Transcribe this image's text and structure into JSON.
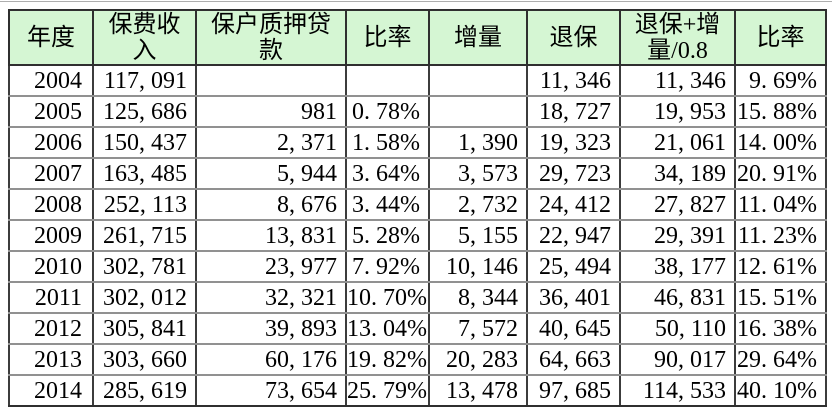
{
  "colors": {
    "header_bg": "#d5f6d3",
    "grid_dark": "#2f2f2f",
    "grid_light": "#919191",
    "text": "#000000",
    "page_bg": "#ffffff"
  },
  "table": {
    "columns": [
      {
        "id": "year",
        "label": "年度"
      },
      {
        "id": "premium-income",
        "label": "保费收\n入"
      },
      {
        "id": "policy-pledge-loan",
        "label": "保户质押贷\n款"
      },
      {
        "id": "ratio",
        "label": "比率"
      },
      {
        "id": "increment",
        "label": "增量"
      },
      {
        "id": "surrender",
        "label": "退保"
      },
      {
        "id": "surrender-plus-increment",
        "label": "退保+增\n量/0.8"
      },
      {
        "id": "ratio-2",
        "label": "比率"
      }
    ],
    "rows": [
      {
        "cells": [
          "2004",
          "117, 091",
          "",
          "",
          "",
          "11, 346",
          "11, 346",
          "9. 69%"
        ]
      },
      {
        "cells": [
          "2005",
          "125, 686",
          "981",
          "0. 78%",
          "",
          "18, 727",
          "19, 953",
          "15. 88%"
        ]
      },
      {
        "cells": [
          "2006",
          "150, 437",
          "2, 371",
          "1. 58%",
          "1, 390",
          "19, 323",
          "21, 061",
          "14. 00%"
        ]
      },
      {
        "cells": [
          "2007",
          "163, 485",
          "5, 944",
          "3. 64%",
          "3, 573",
          "29, 723",
          "34, 189",
          "20. 91%"
        ]
      },
      {
        "cells": [
          "2008",
          "252, 113",
          "8, 676",
          "3. 44%",
          "2, 732",
          "24, 412",
          "27, 827",
          "11. 04%"
        ]
      },
      {
        "cells": [
          "2009",
          "261, 715",
          "13, 831",
          "5. 28%",
          "5, 155",
          "22, 947",
          "29, 391",
          "11. 23%"
        ]
      },
      {
        "cells": [
          "2010",
          "302, 781",
          "23, 977",
          "7. 92%",
          "10, 146",
          "25, 494",
          "38, 177",
          "12. 61%"
        ]
      },
      {
        "cells": [
          "2011",
          "302, 012",
          "32, 321",
          "10. 70%",
          "8, 344",
          "36, 401",
          "46, 831",
          "15. 51%"
        ]
      },
      {
        "cells": [
          "2012",
          "305, 841",
          "39, 893",
          "13. 04%",
          "7, 572",
          "40, 645",
          "50, 110",
          "16. 38%"
        ]
      },
      {
        "cells": [
          "2013",
          "303, 660",
          "60, 176",
          "19. 82%",
          "20, 283",
          "64, 663",
          "90, 017",
          "29. 64%"
        ]
      },
      {
        "cells": [
          "2014",
          "285, 619",
          "73, 654",
          "25. 79%",
          "13, 478",
          "97, 685",
          "114, 533",
          "40. 10%"
        ]
      }
    ]
  },
  "chart_data": {
    "type": "table",
    "columns": [
      "年度",
      "保费收入",
      "保户质押贷款",
      "比率",
      "增量",
      "退保",
      "退保+增量/0.8",
      "比率"
    ],
    "rows": [
      [
        2004,
        117091,
        null,
        null,
        null,
        11346,
        11346,
        "9.69%"
      ],
      [
        2005,
        125686,
        981,
        "0.78%",
        null,
        18727,
        19953,
        "15.88%"
      ],
      [
        2006,
        150437,
        2371,
        "1.58%",
        1390,
        19323,
        21061,
        "14.00%"
      ],
      [
        2007,
        163485,
        5944,
        "3.64%",
        3573,
        29723,
        34189,
        "20.91%"
      ],
      [
        2008,
        252113,
        8676,
        "3.44%",
        2732,
        24412,
        27827,
        "11.04%"
      ],
      [
        2009,
        261715,
        13831,
        "5.28%",
        5155,
        22947,
        29391,
        "11.23%"
      ],
      [
        2010,
        302781,
        23977,
        "7.92%",
        10146,
        25494,
        38177,
        "12.61%"
      ],
      [
        2011,
        302012,
        32321,
        "10.70%",
        8344,
        36401,
        46831,
        "15.51%"
      ],
      [
        2012,
        305841,
        39893,
        "13.04%",
        7572,
        40645,
        50110,
        "16.38%"
      ],
      [
        2013,
        303660,
        60176,
        "19.82%",
        20283,
        64663,
        90017,
        "29.64%"
      ],
      [
        2014,
        285619,
        73654,
        "25.79%",
        13478,
        97685,
        114533,
        "40.10%"
      ]
    ]
  }
}
